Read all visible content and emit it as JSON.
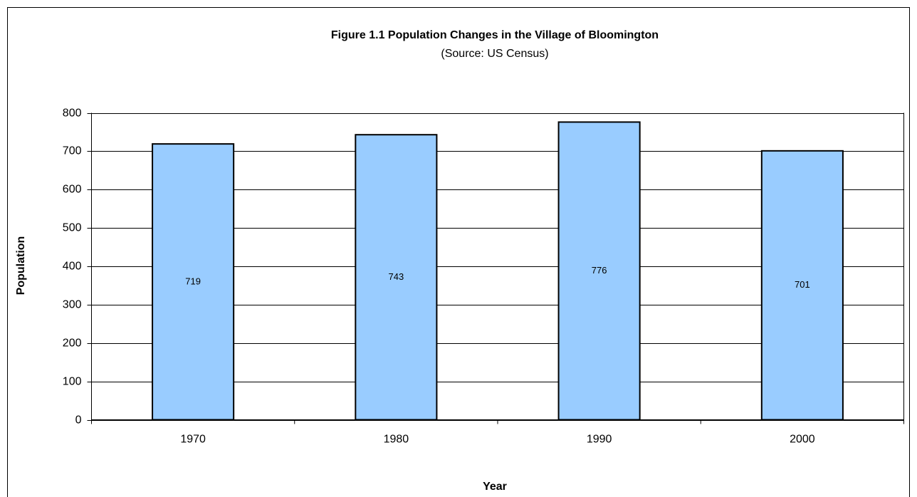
{
  "chart_data": {
    "type": "bar",
    "title": "Figure 1.1 Population Changes in the Village of Bloomington",
    "subtitle": "(Source: US Census)",
    "x_label": "Year",
    "y_label": "Population",
    "categories": [
      "1970",
      "1980",
      "1990",
      "2000"
    ],
    "values": [
      719,
      743,
      776,
      701
    ],
    "color": "#99ccff",
    "ylim": [
      0,
      800
    ],
    "yticks": [
      0,
      100,
      200,
      300,
      400,
      500,
      600,
      700,
      800
    ],
    "grid": true
  }
}
